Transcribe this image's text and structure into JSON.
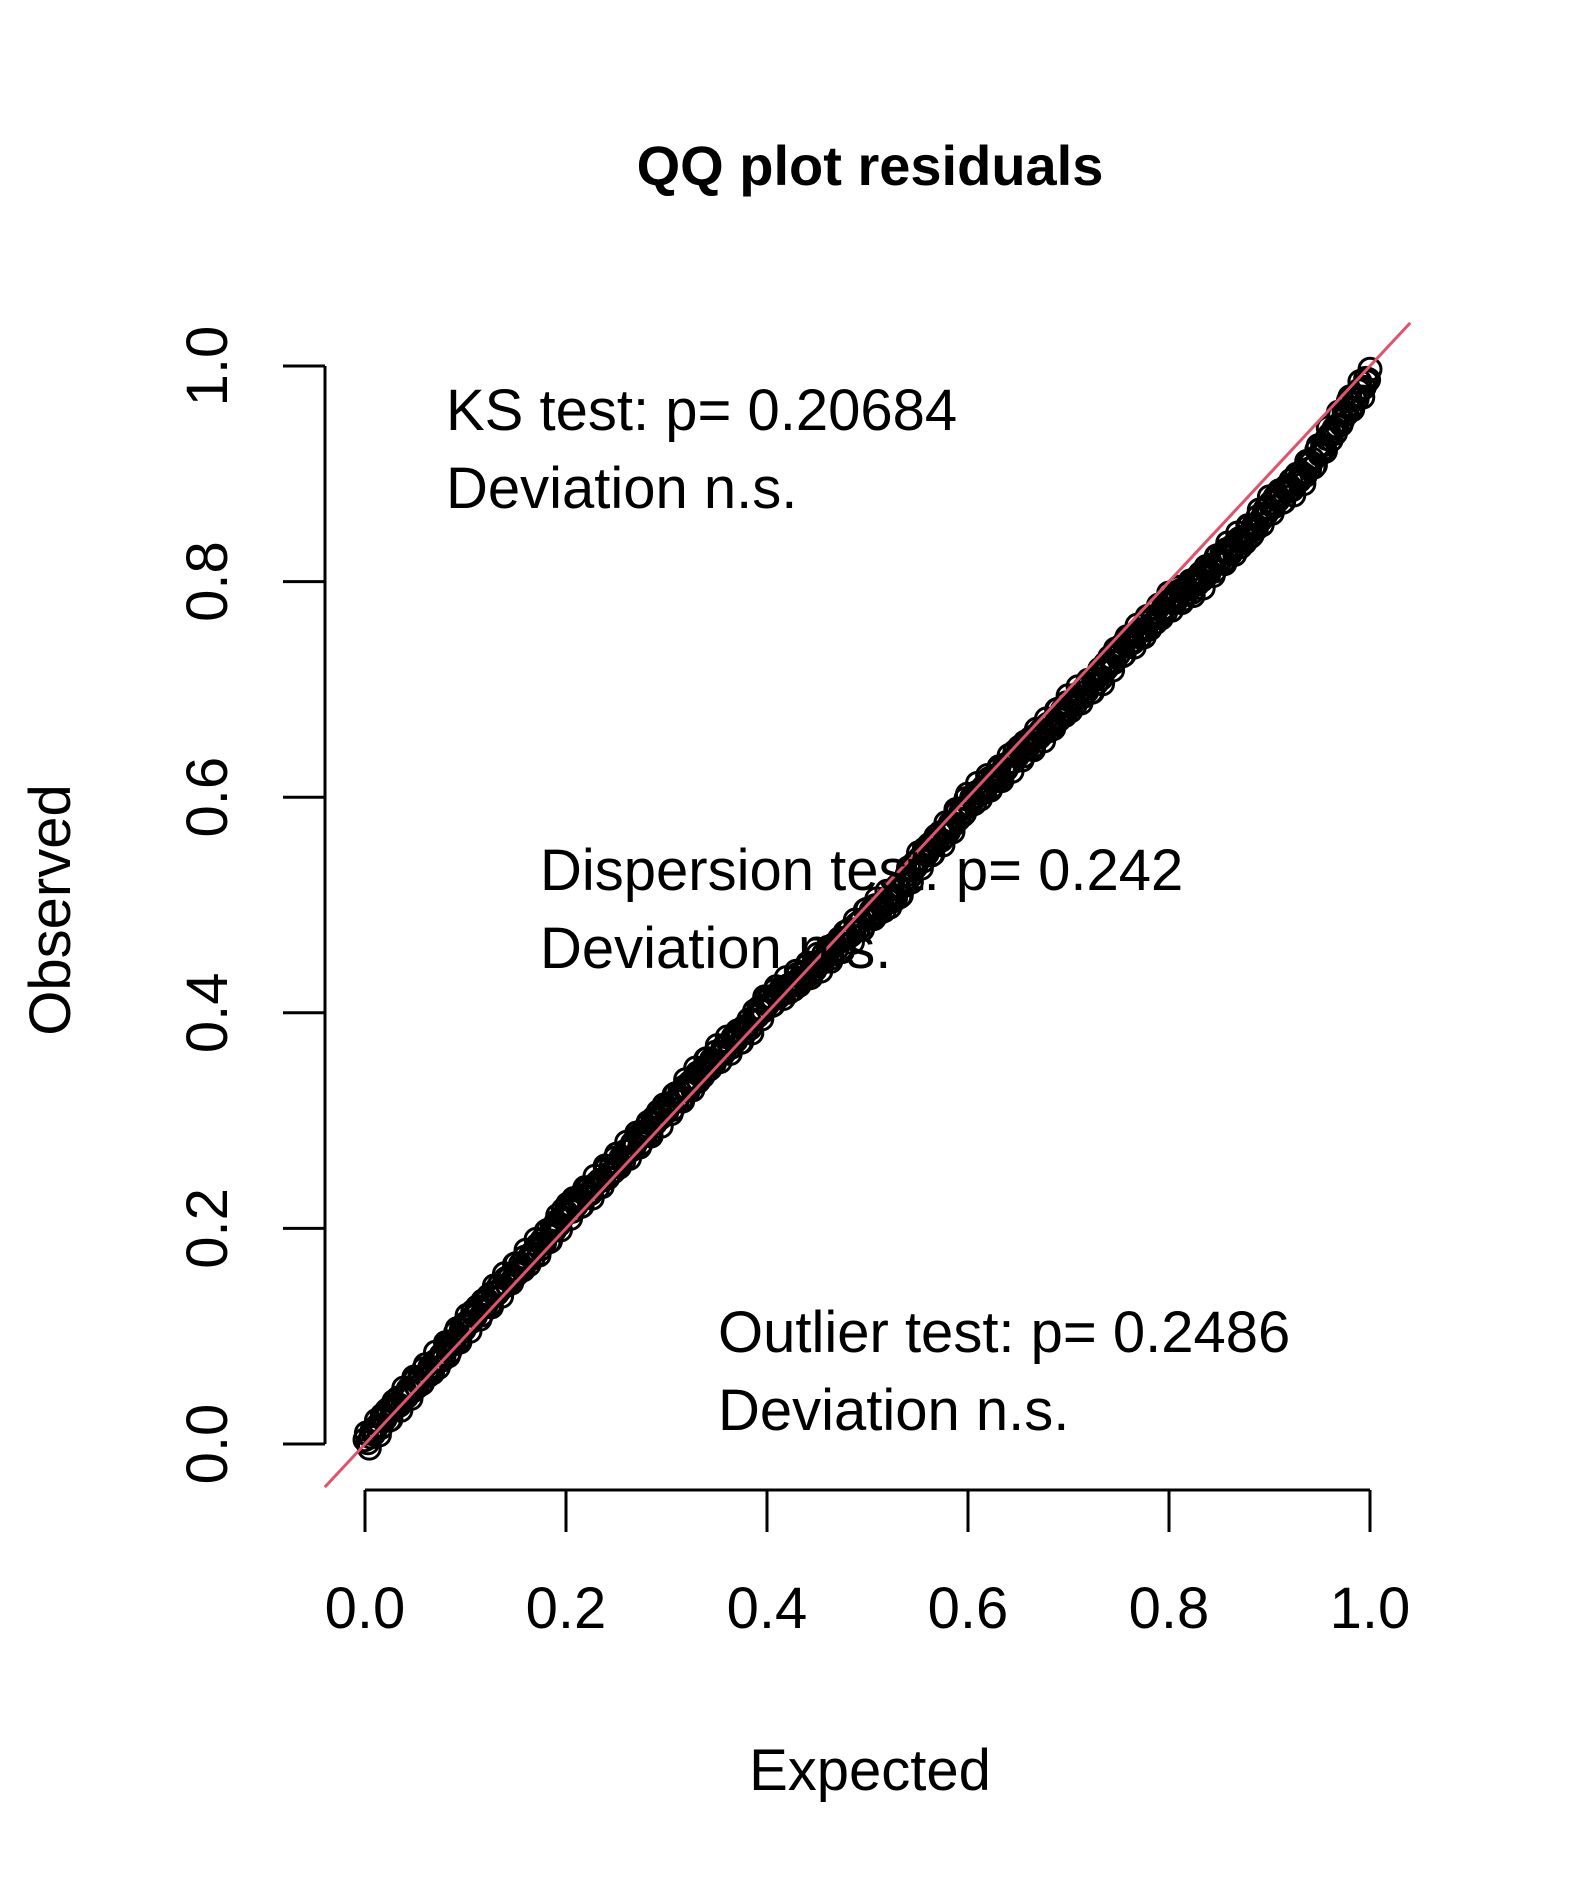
{
  "chart_data": {
    "type": "scatter",
    "title": "QQ plot residuals",
    "xlabel": "Expected",
    "ylabel": "Observed",
    "xlim": [
      0,
      1
    ],
    "ylim": [
      0,
      1
    ],
    "x_ticks": [
      "0.0",
      "0.2",
      "0.4",
      "0.6",
      "0.8",
      "1.0"
    ],
    "y_ticks": [
      "0.0",
      "0.2",
      "0.4",
      "0.6",
      "0.8",
      "1.0"
    ],
    "reference_line": {
      "intercept": 0,
      "slope": 1,
      "color": "#DF536B"
    },
    "point_color": "#000000",
    "series": [
      {
        "x": [
          0.0,
          0.02,
          0.05,
          0.08,
          0.1,
          0.13,
          0.15,
          0.18,
          0.2,
          0.23,
          0.25,
          0.28,
          0.3,
          0.33,
          0.35,
          0.38,
          0.4,
          0.43,
          0.45,
          0.48,
          0.5,
          0.53,
          0.55,
          0.58,
          0.6,
          0.63,
          0.65,
          0.68,
          0.7,
          0.73,
          0.75,
          0.78,
          0.8,
          0.83,
          0.85,
          0.88,
          0.9,
          0.93,
          0.95,
          0.97,
          1.0
        ],
        "y": [
          0.0,
          0.025,
          0.055,
          0.085,
          0.11,
          0.14,
          0.16,
          0.19,
          0.215,
          0.24,
          0.26,
          0.29,
          0.31,
          0.34,
          0.36,
          0.385,
          0.41,
          0.43,
          0.445,
          0.47,
          0.49,
          0.51,
          0.54,
          0.57,
          0.595,
          0.62,
          0.64,
          0.665,
          0.685,
          0.71,
          0.735,
          0.76,
          0.78,
          0.8,
          0.82,
          0.845,
          0.87,
          0.895,
          0.92,
          0.95,
          0.99
        ]
      }
    ],
    "annotations": [
      {
        "text_1": "KS test: p= 0.20684",
        "text_2": "Deviation  n.s."
      },
      {
        "text_1": "Dispersion test: p= 0.242",
        "text_2": "Deviation  n.s."
      },
      {
        "text_1": "Outlier test: p= 0.2486",
        "text_2": "Deviation  n.s."
      }
    ]
  }
}
